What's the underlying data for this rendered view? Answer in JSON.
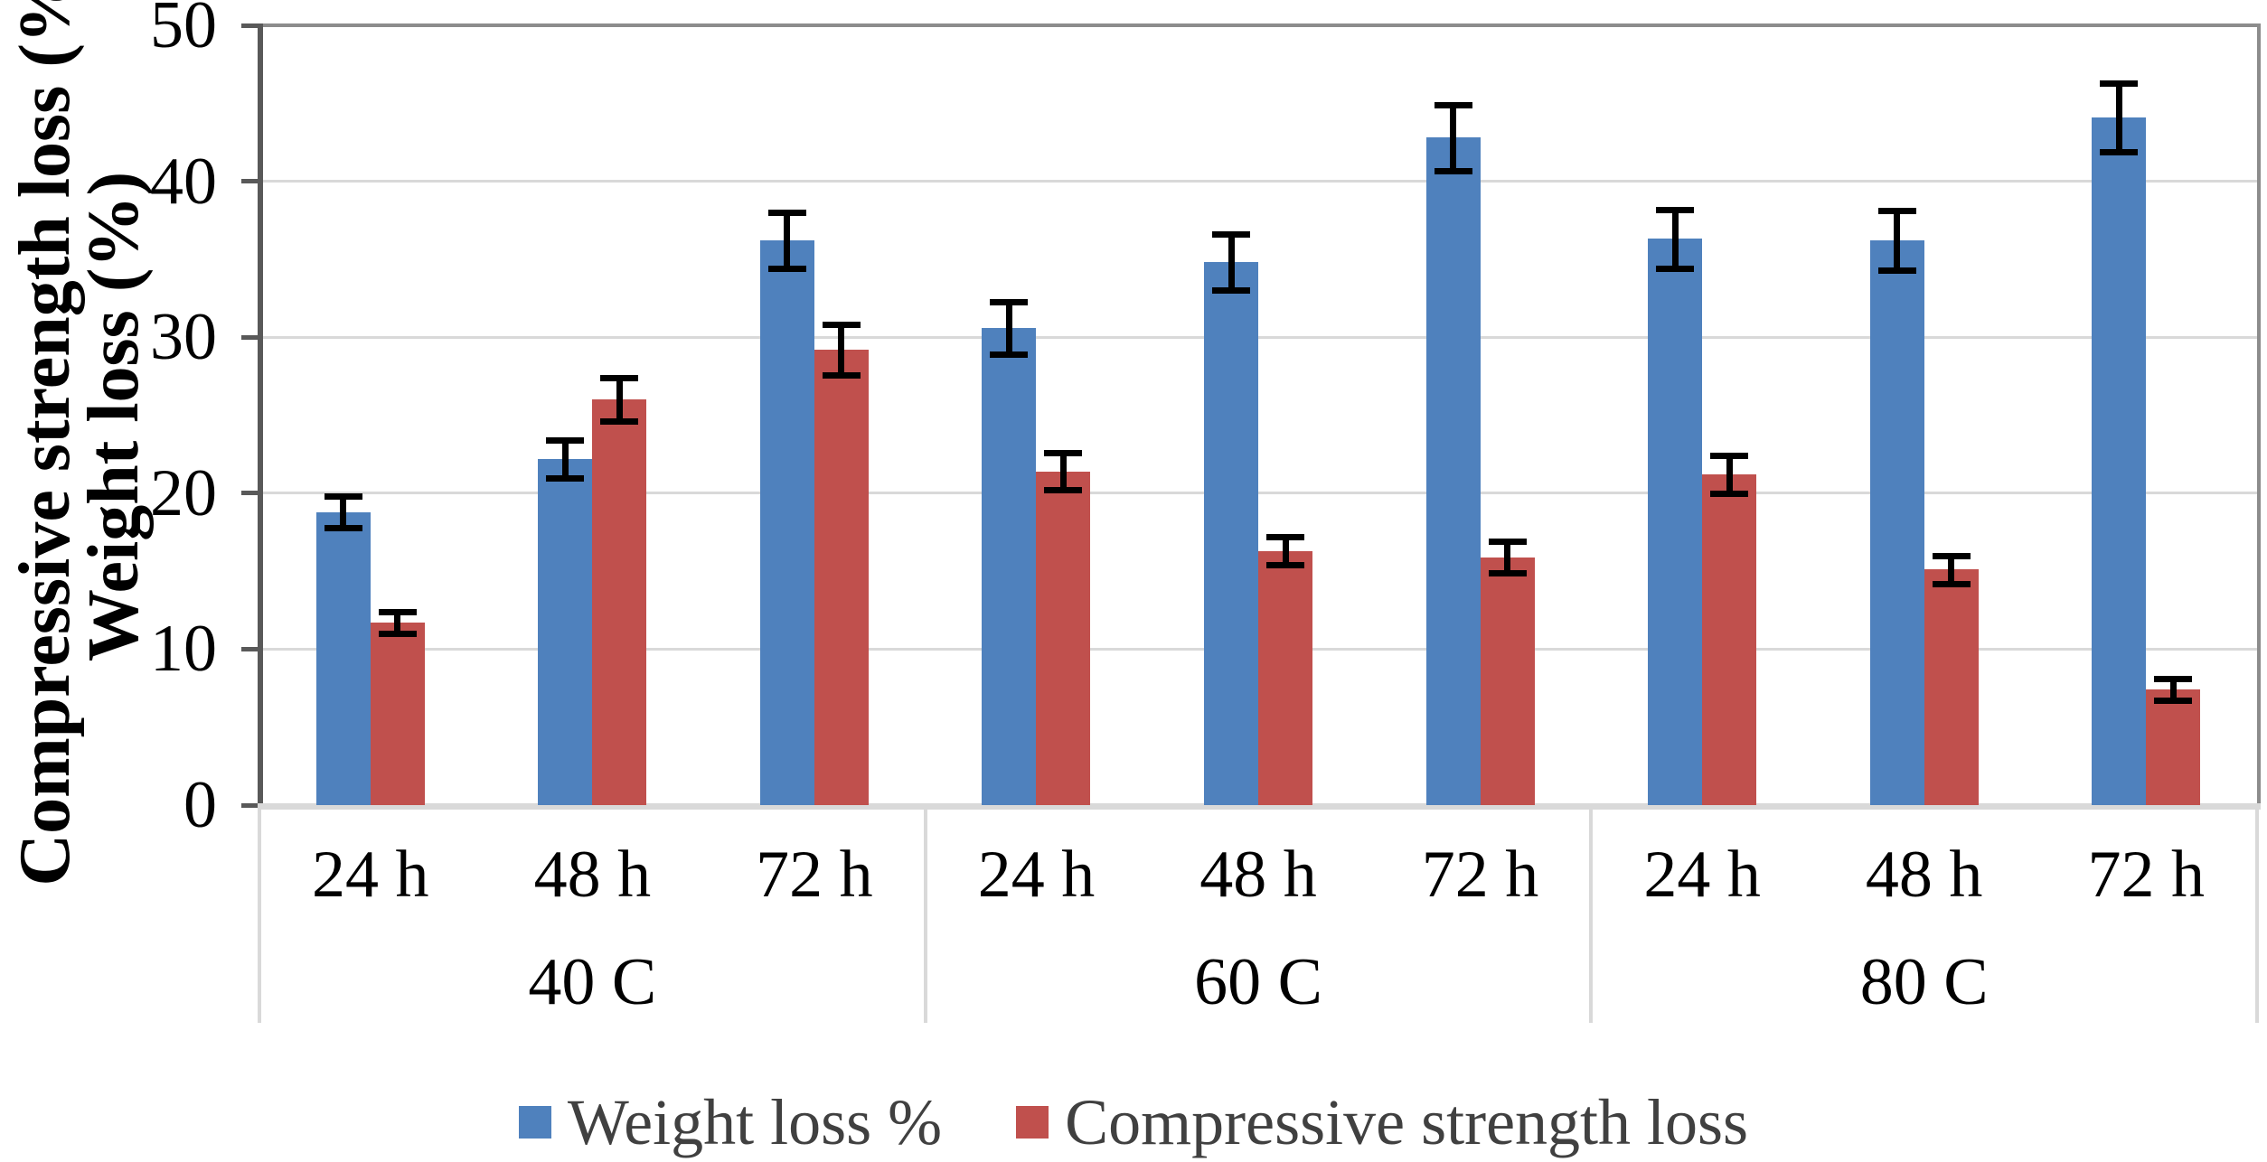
{
  "figure": {
    "y_axis_title_line1": "Compressive strength loss (%)",
    "y_axis_title_line2": "Weight loss (%)"
  },
  "legend": [
    {
      "label": "Weight loss %",
      "color": "#4F81BD"
    },
    {
      "label": "Compressive strength loss",
      "color": "#C0504D"
    }
  ],
  "chart_data": {
    "type": "bar",
    "title": "",
    "xlabel": "",
    "ylabel": "Compressive strength loss (%) / Weight loss (%)",
    "ylim": [
      0,
      50
    ],
    "yticks": [
      0,
      10,
      20,
      30,
      40,
      50
    ],
    "grid": true,
    "legend_position": "bottom",
    "groups": [
      {
        "label": "40 C",
        "categories": [
          "24 h",
          "48 h",
          "72 h"
        ]
      },
      {
        "label": "60 C",
        "categories": [
          "24 h",
          "48 h",
          "72 h"
        ]
      },
      {
        "label": "80 C",
        "categories": [
          "24 h",
          "48 h",
          "72 h"
        ]
      }
    ],
    "series": [
      {
        "name": "Weight loss %",
        "color": "#4F81BD",
        "values": [
          [
            18.8,
            22.2,
            36.2
          ],
          [
            30.6,
            34.8,
            42.8
          ],
          [
            36.3,
            36.2,
            44.1
          ]
        ],
        "errors": [
          [
            1.0,
            1.2,
            1.8
          ],
          [
            1.7,
            1.8,
            2.1
          ],
          [
            1.9,
            1.9,
            2.2
          ]
        ]
      },
      {
        "name": "Compressive strength loss",
        "color": "#C0504D",
        "values": [
          [
            11.7,
            26.0,
            29.2
          ],
          [
            21.4,
            16.3,
            15.9
          ],
          [
            21.2,
            15.1,
            7.4
          ]
        ],
        "errors": [
          [
            0.7,
            1.4,
            1.6
          ],
          [
            1.2,
            0.9,
            1.0
          ],
          [
            1.2,
            0.9,
            0.7
          ]
        ]
      }
    ]
  }
}
